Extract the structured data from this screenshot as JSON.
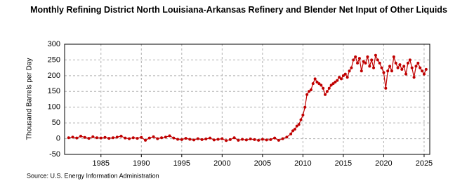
{
  "chart_data": {
    "type": "line",
    "title": "Monthly Refining District North Louisiana-Arkansas Refinery and Blender Net Input of Other Liquids",
    "y_label": "Thousand Barrels per Day",
    "source": "Source: U.S. Energy Information Administration",
    "color": "#c00000",
    "grid": true,
    "x": [
      1981,
      1981.5,
      1982,
      1982.5,
      1983,
      1983.5,
      1984,
      1984.5,
      1985,
      1985.5,
      1986,
      1986.5,
      1987,
      1987.5,
      1988,
      1988.5,
      1989,
      1989.5,
      1990,
      1990.5,
      1991,
      1991.5,
      1992,
      1992.5,
      1993,
      1993.5,
      1994,
      1994.5,
      1995,
      1995.5,
      1996,
      1996.5,
      1997,
      1997.5,
      1998,
      1998.5,
      1999,
      1999.5,
      2000,
      2000.5,
      2001,
      2001.5,
      2002,
      2002.5,
      2003,
      2003.5,
      2004,
      2004.5,
      2005,
      2005.5,
      2006,
      2006.5,
      2007,
      2007.5,
      2008,
      2008.5,
      2008.75,
      2009,
      2009.25,
      2009.5,
      2009.75,
      2010,
      2010.25,
      2010.5,
      2010.75,
      2011,
      2011.25,
      2011.5,
      2011.75,
      2012,
      2012.25,
      2012.5,
      2012.75,
      2013,
      2013.25,
      2013.5,
      2013.75,
      2014,
      2014.25,
      2014.5,
      2014.75,
      2015,
      2015.25,
      2015.5,
      2015.75,
      2016,
      2016.25,
      2016.5,
      2016.75,
      2017,
      2017.25,
      2017.5,
      2017.75,
      2018,
      2018.25,
      2018.5,
      2018.75,
      2019,
      2019.25,
      2019.5,
      2019.75,
      2020,
      2020.25,
      2020.5,
      2020.75,
      2021,
      2021.25,
      2021.5,
      2021.75,
      2022,
      2022.25,
      2022.5,
      2022.75,
      2023,
      2023.25,
      2023.5,
      2023.75,
      2024,
      2024.25,
      2024.5,
      2024.75,
      2025,
      2025.25
    ],
    "values": [
      3,
      5,
      2,
      8,
      4,
      1,
      6,
      3,
      2,
      4,
      1,
      3,
      5,
      8,
      2,
      0,
      3,
      1,
      4,
      -5,
      2,
      6,
      0,
      3,
      5,
      9,
      2,
      -2,
      -3,
      1,
      -2,
      -4,
      0,
      -3,
      -1,
      2,
      -4,
      -2,
      0,
      -6,
      -3,
      3,
      -5,
      -2,
      -4,
      -1,
      -3,
      -5,
      -2,
      -4,
      -3,
      2,
      -5,
      0,
      5,
      15,
      25,
      30,
      40,
      45,
      60,
      75,
      100,
      140,
      150,
      155,
      175,
      190,
      180,
      175,
      170,
      160,
      140,
      150,
      160,
      170,
      175,
      180,
      185,
      195,
      190,
      200,
      205,
      195,
      215,
      225,
      250,
      260,
      240,
      255,
      215,
      245,
      240,
      260,
      230,
      250,
      225,
      265,
      250,
      240,
      225,
      210,
      160,
      215,
      230,
      215,
      260,
      240,
      225,
      235,
      220,
      230,
      205,
      240,
      250,
      225,
      195,
      230,
      240,
      225,
      215,
      205,
      220
    ],
    "xlim": [
      1980.5,
      2025.7
    ],
    "xticks": [
      1985,
      1990,
      1995,
      2000,
      2005,
      2010,
      2015,
      2020,
      2025
    ],
    "ylim": [
      -50,
      300
    ],
    "yticks": [
      -50,
      0,
      50,
      100,
      150,
      200,
      250,
      300
    ]
  }
}
